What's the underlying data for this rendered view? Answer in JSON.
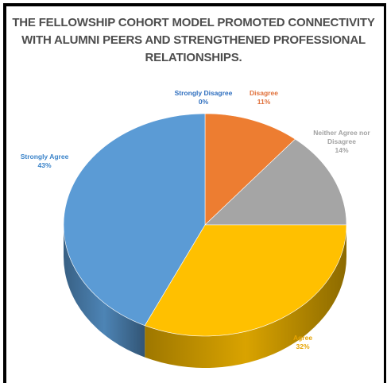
{
  "chart_data": {
    "type": "pie",
    "title_lines": [
      "THE FELLOWSHIP COHORT MODEL PROMOTED CONNECTIVITY",
      "WITH ALUMNI PEERS AND STRENGTHENED PROFESSIONAL",
      "RELATIONSHIPS."
    ],
    "slices": [
      {
        "label": "Strongly Disagree",
        "value": 0,
        "pct_label": "0%",
        "color": "#4472C4"
      },
      {
        "label": "Disagree",
        "value": 11,
        "pct_label": "11%",
        "color": "#ED7D31"
      },
      {
        "label": "Neither Agree nor Disagree",
        "label_lines": [
          "Neither Agree nor",
          "Disagree"
        ],
        "value": 14,
        "pct_label": "14%",
        "color": "#A5A5A5"
      },
      {
        "label": "Agree",
        "value": 32,
        "pct_label": "32%",
        "color": "#FFC000"
      },
      {
        "label": "Strongly Agree",
        "value": 43,
        "pct_label": "43%",
        "color": "#5B9BD5"
      }
    ],
    "data_labels": "category and percentage",
    "legend": "none",
    "style": "3d"
  }
}
